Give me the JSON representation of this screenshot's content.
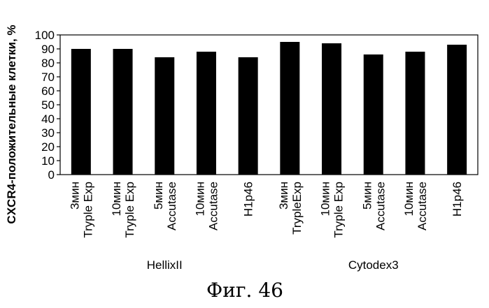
{
  "chart_data": {
    "type": "bar",
    "ylabel": "CXCR4-положительные клетки, %",
    "ylim": [
      0,
      100
    ],
    "yticks": [
      0,
      10,
      20,
      30,
      40,
      50,
      60,
      70,
      80,
      90,
      100
    ],
    "grid": false,
    "bar_color": "#000000",
    "categories": [
      {
        "line1": "3мин",
        "line2": "Tryple Exp"
      },
      {
        "line1": "10мин",
        "line2": "Tryple Exp"
      },
      {
        "line1": "5мин",
        "line2": "Accutase"
      },
      {
        "line1": "10мин",
        "line2": "Accutase"
      },
      {
        "line1": "H1p46",
        "line2": ""
      },
      {
        "line1": "3мин",
        "line2": "TrypleExp"
      },
      {
        "line1": "10мин",
        "line2": "Tryple Exp"
      },
      {
        "line1": "5мин",
        "line2": "Accutase"
      },
      {
        "line1": "10мин",
        "line2": "Accutase"
      },
      {
        "line1": "H1p46",
        "line2": ""
      }
    ],
    "values": [
      90,
      90,
      84,
      88,
      84,
      95,
      94,
      86,
      88,
      93
    ],
    "groups": [
      {
        "label": "HellixII",
        "start": 0,
        "end": 4
      },
      {
        "label": "Cytodex3",
        "start": 5,
        "end": 9
      }
    ]
  },
  "figure_caption": "Фиг. 46"
}
